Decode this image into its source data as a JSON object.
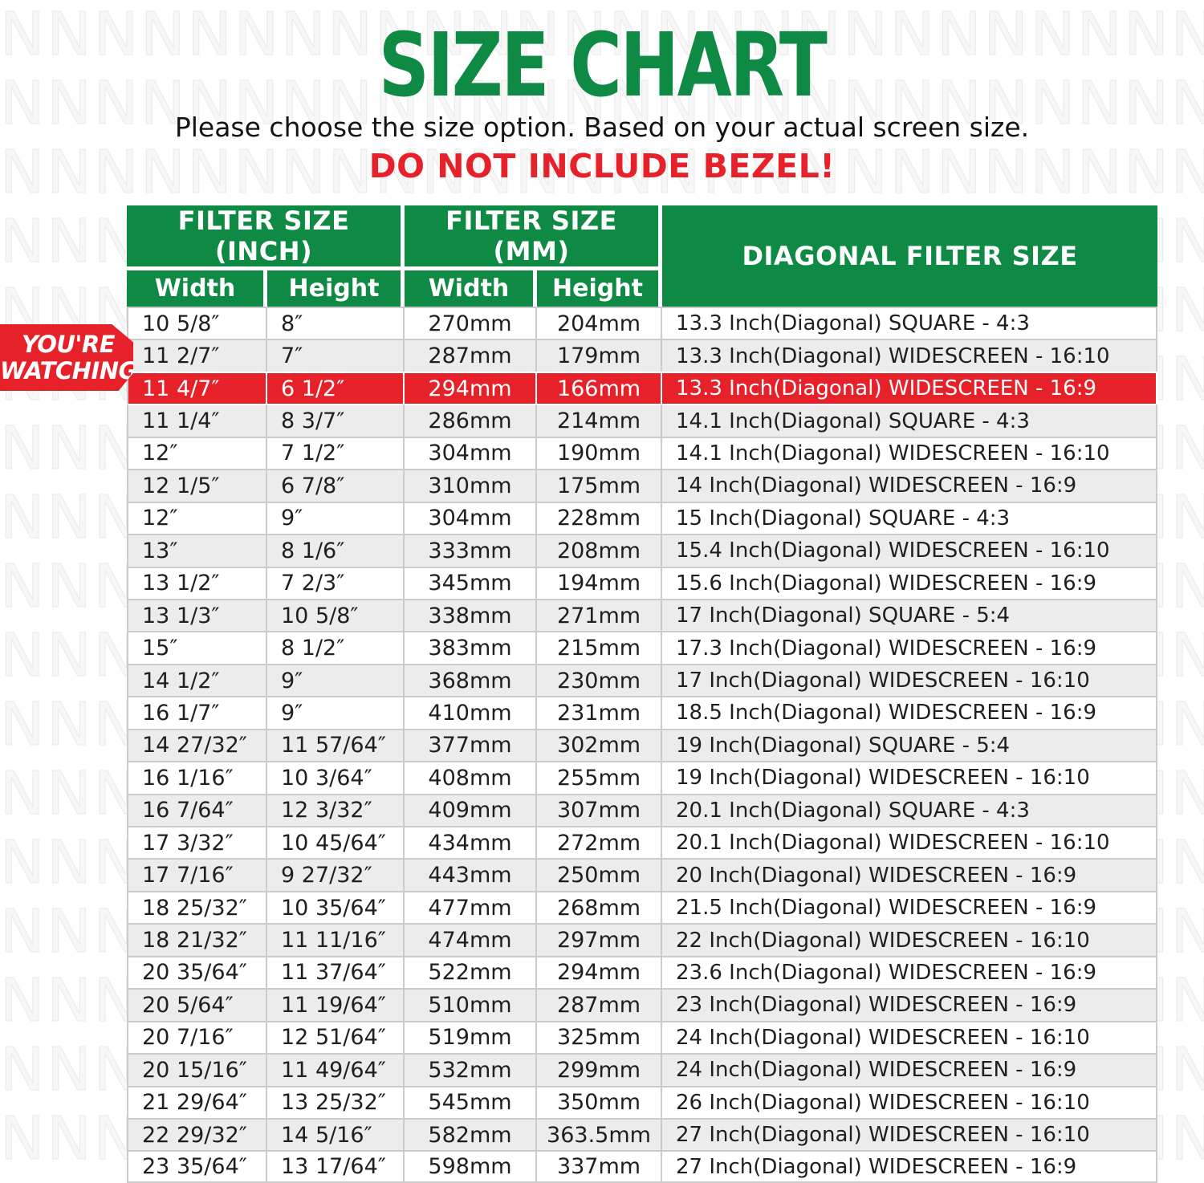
{
  "colors": {
    "green": "#0e8a44",
    "red": "#e72129",
    "row_alt": "#ececec",
    "row_border": "#cbcbcb"
  },
  "header": {
    "title": "SIZE CHART",
    "subtitle": "Please choose the size option. Based on your actual screen size.",
    "warning": "DO NOT INCLUDE BEZEL!"
  },
  "badge": {
    "line1": "YOU'RE",
    "line2": "WATCHING"
  },
  "table": {
    "column_groups": [
      {
        "label": "FILTER SIZE (INCH)"
      },
      {
        "label": "FILTER SIZE (MM)"
      },
      {
        "label": "DIAGONAL FILTER SIZE"
      }
    ],
    "sub_headers": [
      "Width",
      "Height",
      "Width",
      "Height"
    ],
    "highlighted_row_index": 2,
    "rows": [
      {
        "inch_width": "10 5/8″",
        "inch_height": "8″",
        "mm_width": "270mm",
        "mm_height": "204mm",
        "diagonal": "13.3 Inch(Diagonal) SQUARE - 4:3"
      },
      {
        "inch_width": "11 2/7″",
        "inch_height": "7″",
        "mm_width": "287mm",
        "mm_height": "179mm",
        "diagonal": "13.3 Inch(Diagonal) WIDESCREEN - 16:10"
      },
      {
        "inch_width": "11 4/7″",
        "inch_height": "6 1/2″",
        "mm_width": "294mm",
        "mm_height": "166mm",
        "diagonal": "13.3 Inch(Diagonal) WIDESCREEN - 16:9"
      },
      {
        "inch_width": "11 1/4″",
        "inch_height": "8 3/7″",
        "mm_width": "286mm",
        "mm_height": "214mm",
        "diagonal": "14.1 Inch(Diagonal) SQUARE - 4:3"
      },
      {
        "inch_width": "12″",
        "inch_height": "7 1/2″",
        "mm_width": "304mm",
        "mm_height": "190mm",
        "diagonal": "14.1 Inch(Diagonal) WIDESCREEN - 16:10"
      },
      {
        "inch_width": "12 1/5″",
        "inch_height": "6 7/8″",
        "mm_width": "310mm",
        "mm_height": "175mm",
        "diagonal": "14 Inch(Diagonal) WIDESCREEN - 16:9"
      },
      {
        "inch_width": "12″",
        "inch_height": "9″",
        "mm_width": "304mm",
        "mm_height": "228mm",
        "diagonal": "15 Inch(Diagonal) SQUARE - 4:3"
      },
      {
        "inch_width": "13″",
        "inch_height": "8 1/6″",
        "mm_width": "333mm",
        "mm_height": "208mm",
        "diagonal": "15.4 Inch(Diagonal) WIDESCREEN - 16:10"
      },
      {
        "inch_width": "13 1/2″",
        "inch_height": "7 2/3″",
        "mm_width": "345mm",
        "mm_height": "194mm",
        "diagonal": "15.6 Inch(Diagonal) WIDESCREEN - 16:9"
      },
      {
        "inch_width": "13 1/3″",
        "inch_height": "10 5/8″",
        "mm_width": "338mm",
        "mm_height": "271mm",
        "diagonal": "17 Inch(Diagonal) SQUARE - 5:4"
      },
      {
        "inch_width": "15″",
        "inch_height": "8 1/2″",
        "mm_width": "383mm",
        "mm_height": "215mm",
        "diagonal": "17.3 Inch(Diagonal) WIDESCREEN - 16:9"
      },
      {
        "inch_width": "14 1/2″",
        "inch_height": "9″",
        "mm_width": "368mm",
        "mm_height": "230mm",
        "diagonal": "17 Inch(Diagonal) WIDESCREEN - 16:10"
      },
      {
        "inch_width": "16 1/7″",
        "inch_height": "9″",
        "mm_width": "410mm",
        "mm_height": "231mm",
        "diagonal": "18.5 Inch(Diagonal) WIDESCREEN - 16:9"
      },
      {
        "inch_width": "14 27/32″",
        "inch_height": "11 57/64″",
        "mm_width": "377mm",
        "mm_height": "302mm",
        "diagonal": "19 Inch(Diagonal) SQUARE - 5:4"
      },
      {
        "inch_width": "16 1/16″",
        "inch_height": "10 3/64″",
        "mm_width": "408mm",
        "mm_height": "255mm",
        "diagonal": "19 Inch(Diagonal) WIDESCREEN - 16:10"
      },
      {
        "inch_width": "16 7/64″",
        "inch_height": "12 3/32″",
        "mm_width": "409mm",
        "mm_height": "307mm",
        "diagonal": "20.1 Inch(Diagonal) SQUARE - 4:3"
      },
      {
        "inch_width": "17 3/32″",
        "inch_height": "10 45/64″",
        "mm_width": "434mm",
        "mm_height": "272mm",
        "diagonal": "20.1 Inch(Diagonal) WIDESCREEN - 16:10"
      },
      {
        "inch_width": "17 7/16″",
        "inch_height": "9 27/32″",
        "mm_width": "443mm",
        "mm_height": "250mm",
        "diagonal": "20 Inch(Diagonal) WIDESCREEN - 16:9"
      },
      {
        "inch_width": "18 25/32″",
        "inch_height": "10 35/64″",
        "mm_width": "477mm",
        "mm_height": "268mm",
        "diagonal": "21.5 Inch(Diagonal) WIDESCREEN - 16:9"
      },
      {
        "inch_width": "18 21/32″",
        "inch_height": "11 11/16″",
        "mm_width": "474mm",
        "mm_height": "297mm",
        "diagonal": "22 Inch(Diagonal) WIDESCREEN - 16:10"
      },
      {
        "inch_width": "20 35/64″",
        "inch_height": "11 37/64″",
        "mm_width": "522mm",
        "mm_height": "294mm",
        "diagonal": "23.6 Inch(Diagonal) WIDESCREEN - 16:9"
      },
      {
        "inch_width": "20 5/64″",
        "inch_height": "11 19/64″",
        "mm_width": "510mm",
        "mm_height": "287mm",
        "diagonal": "23 Inch(Diagonal) WIDESCREEN - 16:9"
      },
      {
        "inch_width": "20 7/16″",
        "inch_height": "12 51/64″",
        "mm_width": "519mm",
        "mm_height": "325mm",
        "diagonal": "24 Inch(Diagonal) WIDESCREEN - 16:10"
      },
      {
        "inch_width": "20 15/16″",
        "inch_height": "11 49/64″",
        "mm_width": "532mm",
        "mm_height": "299mm",
        "diagonal": "24 Inch(Diagonal) WIDESCREEN - 16:9"
      },
      {
        "inch_width": "21 29/64″",
        "inch_height": "13 25/32″",
        "mm_width": "545mm",
        "mm_height": "350mm",
        "diagonal": "26 Inch(Diagonal) WIDESCREEN - 16:10"
      },
      {
        "inch_width": "22 29/32″",
        "inch_height": "14 5/16″",
        "mm_width": "582mm",
        "mm_height": "363.5mm",
        "diagonal": "27 Inch(Diagonal) WIDESCREEN - 16:10"
      },
      {
        "inch_width": "23 35/64″",
        "inch_height": "13 17/64″",
        "mm_width": "598mm",
        "mm_height": "337mm",
        "diagonal": "27 Inch(Diagonal) WIDESCREEN - 16:9"
      }
    ]
  }
}
